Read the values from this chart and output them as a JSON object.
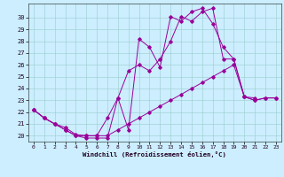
{
  "xlabel": "Windchill (Refroidissement éolien,°C)",
  "xlim": [
    -0.5,
    23.5
  ],
  "ylim": [
    19.5,
    31.2
  ],
  "yticks": [
    20,
    21,
    22,
    23,
    24,
    25,
    26,
    27,
    28,
    29,
    30
  ],
  "xticks": [
    0,
    1,
    2,
    3,
    4,
    5,
    6,
    7,
    8,
    9,
    10,
    11,
    12,
    13,
    14,
    15,
    16,
    17,
    18,
    19,
    20,
    21,
    22,
    23
  ],
  "bg_color": "#cceeff",
  "line_color": "#990099",
  "line1_x": [
    0,
    1,
    2,
    3,
    4,
    5,
    6,
    7,
    8,
    9,
    10,
    11,
    12,
    13,
    14,
    15,
    16,
    17,
    18,
    19,
    20,
    21
  ],
  "line1_y": [
    22.2,
    21.5,
    21.0,
    20.5,
    20.0,
    19.8,
    19.8,
    19.8,
    23.2,
    20.5,
    28.2,
    27.5,
    25.8,
    30.1,
    29.7,
    30.5,
    30.8,
    29.5,
    27.5,
    26.5,
    23.3,
    23.2
  ],
  "line2_x": [
    0,
    1,
    2,
    3,
    4,
    5,
    6,
    7,
    8,
    9,
    10,
    11,
    12,
    13,
    14,
    15,
    16,
    17,
    18,
    19,
    20,
    21,
    22,
    23
  ],
  "line2_y": [
    22.2,
    21.5,
    21.0,
    20.7,
    20.1,
    20.0,
    20.0,
    21.5,
    23.2,
    25.5,
    26.0,
    25.5,
    26.5,
    28.0,
    30.1,
    29.7,
    30.5,
    30.8,
    26.5,
    26.5,
    23.3,
    23.0,
    23.2,
    23.2
  ],
  "line3_x": [
    0,
    1,
    2,
    3,
    4,
    5,
    6,
    7,
    8,
    9,
    10,
    11,
    12,
    13,
    14,
    15,
    16,
    17,
    18,
    19,
    20,
    21,
    22,
    23
  ],
  "line3_y": [
    22.2,
    21.5,
    21.0,
    20.5,
    20.0,
    20.0,
    20.0,
    20.0,
    20.5,
    21.0,
    21.5,
    22.0,
    22.5,
    23.0,
    23.5,
    24.0,
    24.5,
    25.0,
    25.5,
    26.0,
    23.3,
    23.0,
    23.2,
    23.2
  ]
}
